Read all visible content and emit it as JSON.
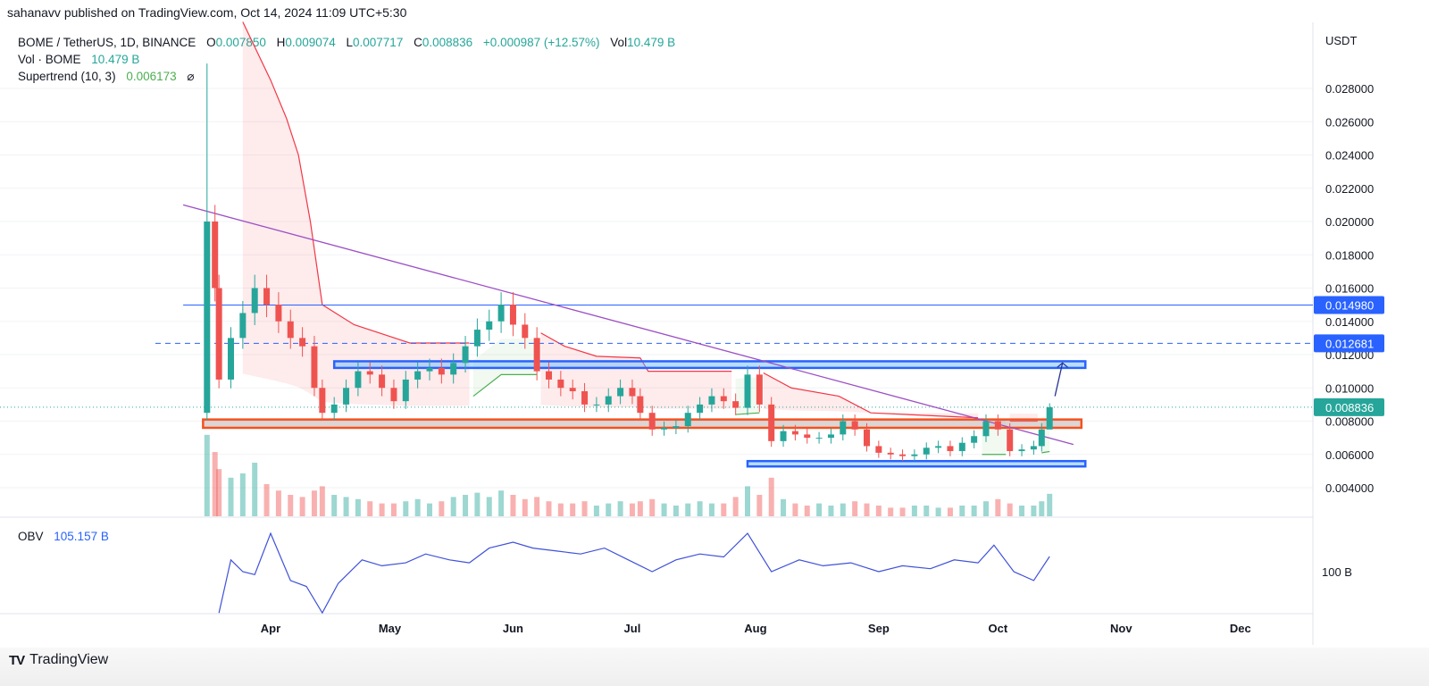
{
  "header": {
    "published": "sahanavv published on TradingView.com, Oct 14, 2024 11:09 UTC+5:30",
    "symbol": "BOME / TetherUS, 1D, BINANCE",
    "o_label": "O",
    "o": "0.007850",
    "h_label": "H",
    "h": "0.009074",
    "l_label": "L",
    "l": "0.007717",
    "c_label": "C",
    "c": "0.008836",
    "change": "+0.000987 (+12.57%)",
    "vol_label": "Vol",
    "vol": "10.479 B",
    "vol_indicator": "Vol · BOME",
    "vol_indicator_value": "10.479 B",
    "supertrend": "Supertrend (10, 3)",
    "supertrend_value": "0.006173",
    "supertrend_icon": "hidden-eye-slash-icon"
  },
  "obv": {
    "label": "OBV",
    "value": "105.157 B",
    "tick": "100 B"
  },
  "footer": {
    "brand": "TradingView",
    "logo_mark": "TV"
  },
  "colors": {
    "up": "#26a69a",
    "down": "#ef5350",
    "obv": "#3f51d8",
    "trendline": "#9c4fc4",
    "zone_blue": "#2962ff",
    "zone_orange": "#f4511e",
    "last_price": "#26a69a"
  },
  "chart_data": {
    "type": "candlestick",
    "title": "BOME / TetherUS, 1D, BINANCE",
    "y_axis_label": "USDT",
    "ylim": [
      0.003,
      0.03
    ],
    "y_ticks": [
      "0.004000",
      "0.006000",
      "0.008000",
      "0.010000",
      "0.012000",
      "0.014000",
      "0.016000",
      "0.018000",
      "0.020000",
      "0.022000",
      "0.024000",
      "0.026000",
      "0.028000"
    ],
    "x_ticks": [
      {
        "label": "Apr",
        "date": "2024-04-01"
      },
      {
        "label": "May",
        "date": "2024-05-01"
      },
      {
        "label": "Jun",
        "date": "2024-06-01"
      },
      {
        "label": "Jul",
        "date": "2024-07-01"
      },
      {
        "label": "Aug",
        "date": "2024-08-01"
      },
      {
        "label": "Sep",
        "date": "2024-09-01"
      },
      {
        "label": "Oct",
        "date": "2024-10-01"
      },
      {
        "label": "Nov",
        "date": "2024-11-01"
      },
      {
        "label": "Dec",
        "date": "2024-12-01"
      }
    ],
    "first_open": 0.0085,
    "first_high": 0.0295,
    "closes": [
      [
        "2024-03-16",
        0.02
      ],
      [
        "2024-03-18",
        0.016
      ],
      [
        "2024-03-19",
        0.0105
      ],
      [
        "2024-03-22",
        0.013
      ],
      [
        "2024-03-25",
        0.0145
      ],
      [
        "2024-03-28",
        0.016
      ],
      [
        "2024-03-31",
        0.015
      ],
      [
        "2024-04-03",
        0.014
      ],
      [
        "2024-04-06",
        0.013
      ],
      [
        "2024-04-09",
        0.0125
      ],
      [
        "2024-04-12",
        0.01
      ],
      [
        "2024-04-14",
        0.0085
      ],
      [
        "2024-04-17",
        0.009
      ],
      [
        "2024-04-20",
        0.01
      ],
      [
        "2024-04-23",
        0.011
      ],
      [
        "2024-04-26",
        0.0108
      ],
      [
        "2024-04-29",
        0.01
      ],
      [
        "2024-05-02",
        0.0092
      ],
      [
        "2024-05-05",
        0.0105
      ],
      [
        "2024-05-08",
        0.011
      ],
      [
        "2024-05-11",
        0.0112
      ],
      [
        "2024-05-14",
        0.0108
      ],
      [
        "2024-05-17",
        0.0115
      ],
      [
        "2024-05-20",
        0.0125
      ],
      [
        "2024-05-23",
        0.0135
      ],
      [
        "2024-05-26",
        0.014
      ],
      [
        "2024-05-29",
        0.015
      ],
      [
        "2024-06-01",
        0.0138
      ],
      [
        "2024-06-04",
        0.013
      ],
      [
        "2024-06-07",
        0.011
      ],
      [
        "2024-06-10",
        0.0105
      ],
      [
        "2024-06-13",
        0.01
      ],
      [
        "2024-06-16",
        0.0098
      ],
      [
        "2024-06-19",
        0.009
      ],
      [
        "2024-06-22",
        0.009
      ],
      [
        "2024-06-25",
        0.0095
      ],
      [
        "2024-06-28",
        0.01
      ],
      [
        "2024-07-01",
        0.0095
      ],
      [
        "2024-07-03",
        0.0085
      ],
      [
        "2024-07-06",
        0.0075
      ],
      [
        "2024-07-09",
        0.0076
      ],
      [
        "2024-07-12",
        0.0077
      ],
      [
        "2024-07-15",
        0.0085
      ],
      [
        "2024-07-18",
        0.009
      ],
      [
        "2024-07-21",
        0.0095
      ],
      [
        "2024-07-24",
        0.0092
      ],
      [
        "2024-07-27",
        0.0088
      ],
      [
        "2024-07-30",
        0.0108
      ],
      [
        "2024-08-02",
        0.009
      ],
      [
        "2024-08-05",
        0.0068
      ],
      [
        "2024-08-08",
        0.0074
      ],
      [
        "2024-08-11",
        0.0072
      ],
      [
        "2024-08-14",
        0.007
      ],
      [
        "2024-08-17",
        0.007
      ],
      [
        "2024-08-20",
        0.0072
      ],
      [
        "2024-08-23",
        0.008
      ],
      [
        "2024-08-26",
        0.0075
      ],
      [
        "2024-08-29",
        0.0065
      ],
      [
        "2024-09-01",
        0.0061
      ],
      [
        "2024-09-04",
        0.006
      ],
      [
        "2024-09-07",
        0.0059
      ],
      [
        "2024-09-10",
        0.006
      ],
      [
        "2024-09-13",
        0.0064
      ],
      [
        "2024-09-16",
        0.0065
      ],
      [
        "2024-09-19",
        0.0062
      ],
      [
        "2024-09-22",
        0.0067
      ],
      [
        "2024-09-25",
        0.0071
      ],
      [
        "2024-09-28",
        0.008
      ],
      [
        "2024-10-01",
        0.0075
      ],
      [
        "2024-10-04",
        0.0062
      ],
      [
        "2024-10-07",
        0.0063
      ],
      [
        "2024-10-10",
        0.0065
      ],
      [
        "2024-10-12",
        0.0075
      ],
      [
        "2024-10-14",
        0.008836
      ]
    ],
    "volume_billions": [
      38,
      30,
      22,
      18,
      20,
      25,
      15,
      12,
      10,
      9,
      12,
      14,
      10,
      9,
      8,
      7,
      6,
      6,
      7,
      8,
      6,
      7,
      9,
      10,
      11,
      9,
      12,
      10,
      8,
      9,
      7,
      6,
      6,
      7,
      5,
      6,
      7,
      6,
      7,
      8,
      6,
      5,
      6,
      7,
      6,
      6,
      9,
      14,
      10,
      18,
      8,
      6,
      5,
      6,
      5,
      6,
      7,
      6,
      5,
      4,
      4,
      5,
      5,
      4,
      4,
      5,
      5,
      7,
      8,
      6,
      5,
      5,
      7,
      10.479
    ],
    "supertrend": [
      {
        "direction": "down",
        "points": [
          [
            "2024-03-25",
            0.032
          ],
          [
            "2024-04-01",
            0.0285
          ],
          [
            "2024-04-05",
            0.0262
          ],
          [
            "2024-04-08",
            0.024
          ],
          [
            "2024-04-11",
            0.02
          ],
          [
            "2024-04-14",
            0.015
          ],
          [
            "2024-04-22",
            0.0138
          ],
          [
            "2024-05-06",
            0.0127
          ],
          [
            "2024-05-21",
            0.0127
          ]
        ]
      },
      {
        "direction": "up",
        "points": [
          [
            "2024-05-22",
            0.0095
          ],
          [
            "2024-05-29",
            0.0108
          ],
          [
            "2024-06-07",
            0.0108
          ]
        ]
      },
      {
        "direction": "down",
        "points": [
          [
            "2024-06-08",
            0.0133
          ],
          [
            "2024-06-14",
            0.0125
          ],
          [
            "2024-06-22",
            0.0119
          ],
          [
            "2024-07-03",
            0.0118
          ],
          [
            "2024-07-05",
            0.011
          ],
          [
            "2024-07-26",
            0.011
          ]
        ]
      },
      {
        "direction": "up",
        "points": [
          [
            "2024-07-27",
            0.0084
          ],
          [
            "2024-08-02",
            0.0085
          ]
        ]
      },
      {
        "direction": "down",
        "points": [
          [
            "2024-08-03",
            0.0109
          ],
          [
            "2024-08-10",
            0.01
          ],
          [
            "2024-08-22",
            0.0095
          ],
          [
            "2024-08-30",
            0.0085
          ],
          [
            "2024-09-26",
            0.0082
          ]
        ]
      },
      {
        "direction": "up",
        "points": [
          [
            "2024-09-27",
            0.006
          ],
          [
            "2024-10-03",
            0.006
          ]
        ]
      },
      {
        "direction": "down",
        "points": [
          [
            "2024-10-04",
            0.008
          ],
          [
            "2024-10-11",
            0.008
          ]
        ]
      },
      {
        "direction": "up",
        "points": [
          [
            "2024-10-12",
            0.0061
          ],
          [
            "2024-10-14",
            0.006173
          ]
        ]
      }
    ],
    "trendline": [
      [
        "2024-03-10",
        0.021
      ],
      [
        "2024-10-20",
        0.0066
      ]
    ],
    "horizontal_lines": [
      {
        "value": 0.01498,
        "label": "0.014980",
        "style": "solid",
        "from": "2024-03-10"
      },
      {
        "value": 0.012681,
        "label": "0.012681",
        "style": "dashed",
        "from": "2024-03-03"
      }
    ],
    "zones": [
      {
        "color": "blue",
        "from": "2024-04-17",
        "to": "2024-10-23",
        "low": 0.0112,
        "high": 0.0116
      },
      {
        "color": "orange",
        "from": "2024-03-15",
        "to": "2024-10-22",
        "low": 0.0076,
        "high": 0.0081
      },
      {
        "color": "blue",
        "from": "2024-07-30",
        "to": "2024-10-23",
        "low": 0.0054,
        "high": 0.0056
      }
    ],
    "projection_arrow": [
      [
        "2024-10-14",
        0.0095
      ],
      [
        "2024-10-15",
        0.0115
      ]
    ],
    "last_price": {
      "value": 0.008836,
      "label": "0.008836"
    },
    "obv_billions": [
      [
        "2024-03-19",
        86
      ],
      [
        "2024-03-22",
        104
      ],
      [
        "2024-03-25",
        100
      ],
      [
        "2024-03-28",
        99
      ],
      [
        "2024-04-01",
        113
      ],
      [
        "2024-04-06",
        97
      ],
      [
        "2024-04-10",
        95
      ],
      [
        "2024-04-14",
        86
      ],
      [
        "2024-04-18",
        96
      ],
      [
        "2024-04-24",
        104
      ],
      [
        "2024-04-29",
        102
      ],
      [
        "2024-05-05",
        103
      ],
      [
        "2024-05-10",
        106
      ],
      [
        "2024-05-16",
        104
      ],
      [
        "2024-05-21",
        103
      ],
      [
        "2024-05-26",
        108
      ],
      [
        "2024-06-01",
        110
      ],
      [
        "2024-06-06",
        108
      ],
      [
        "2024-06-12",
        107
      ],
      [
        "2024-06-18",
        106
      ],
      [
        "2024-06-24",
        108
      ],
      [
        "2024-06-30",
        104
      ],
      [
        "2024-07-06",
        100
      ],
      [
        "2024-07-12",
        104
      ],
      [
        "2024-07-18",
        106
      ],
      [
        "2024-07-24",
        105
      ],
      [
        "2024-07-30",
        113
      ],
      [
        "2024-08-05",
        100
      ],
      [
        "2024-08-12",
        104
      ],
      [
        "2024-08-18",
        102
      ],
      [
        "2024-08-25",
        103
      ],
      [
        "2024-09-01",
        100
      ],
      [
        "2024-09-07",
        102
      ],
      [
        "2024-09-14",
        101
      ],
      [
        "2024-09-20",
        104
      ],
      [
        "2024-09-26",
        103
      ],
      [
        "2024-09-30",
        109
      ],
      [
        "2024-10-05",
        100
      ],
      [
        "2024-10-10",
        97
      ],
      [
        "2024-10-14",
        105.157
      ]
    ]
  }
}
